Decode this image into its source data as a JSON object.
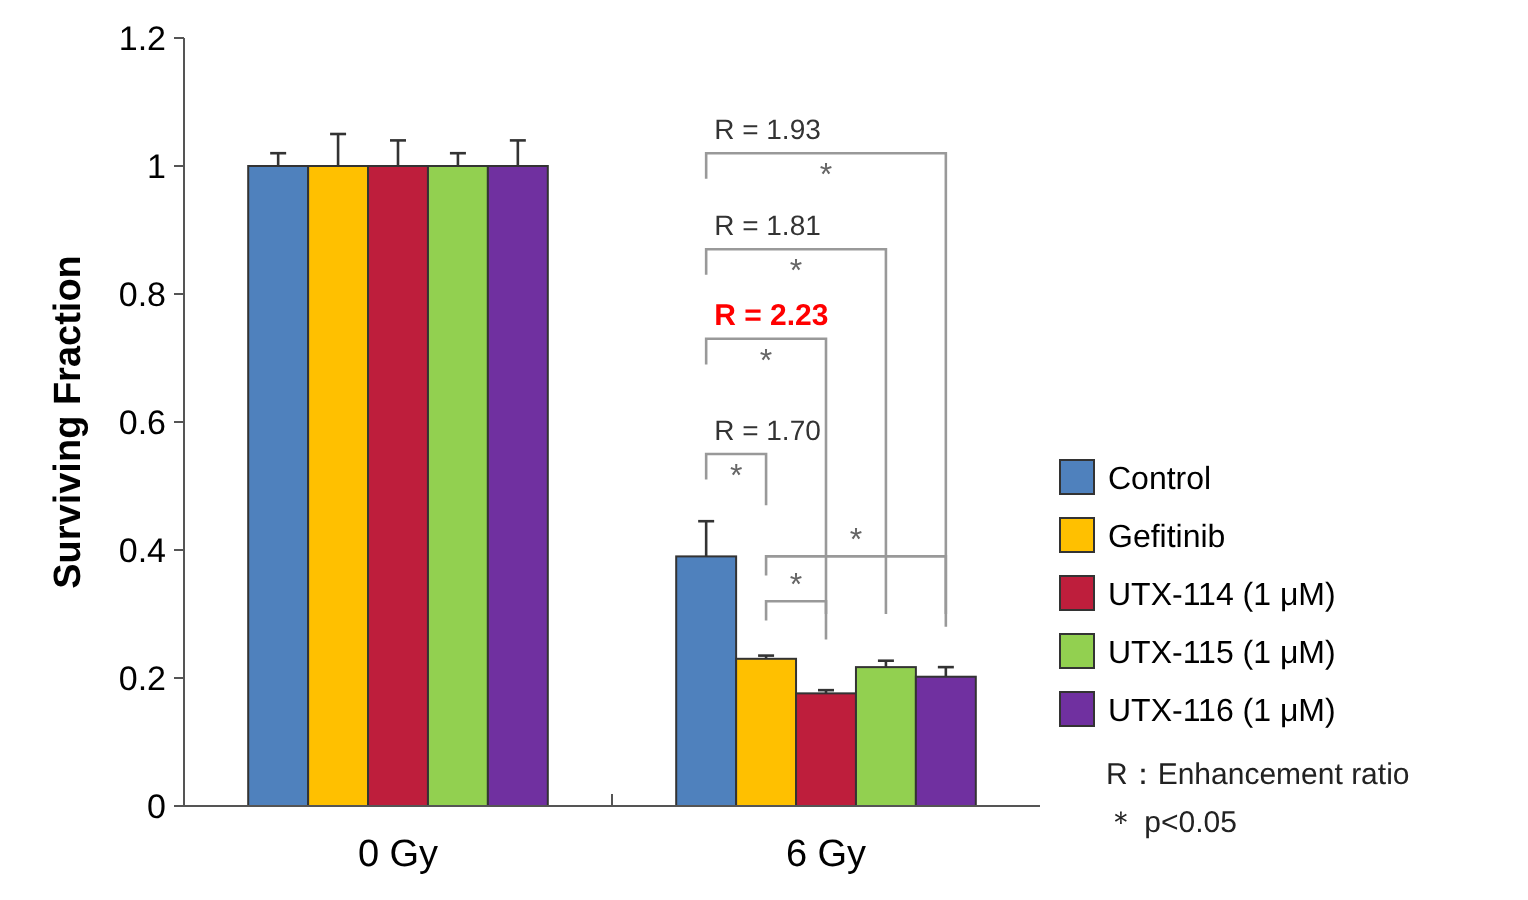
{
  "chart_data": {
    "type": "bar",
    "ylabel": "Surviving Fraction",
    "categories": [
      "0 Gy",
      "6 Gy"
    ],
    "series": [
      {
        "name": "Control",
        "color": "#4f81bd",
        "values": [
          1,
          0.39
        ],
        "errors": [
          0.02,
          0.055
        ]
      },
      {
        "name": "Gefitinib",
        "color": "#ffc000",
        "values": [
          1,
          0.23
        ],
        "errors": [
          0.05,
          0.005
        ]
      },
      {
        "name": "UTX-114 (1 μM)",
        "color": "#be1e3c",
        "values": [
          1,
          0.176
        ],
        "errors": [
          0.04,
          0.005
        ]
      },
      {
        "name": "UTX-115 (1 μM)",
        "color": "#92d050",
        "values": [
          1,
          0.217
        ],
        "errors": [
          0.02,
          0.01
        ]
      },
      {
        "name": "UTX-116 (1 μM)",
        "color": "#7030a0",
        "values": [
          1,
          0.202
        ],
        "errors": [
          0.04,
          0.015
        ]
      }
    ],
    "ylim": [
      0,
      1.2
    ],
    "yticks": [
      0,
      0.2,
      0.4,
      0.6,
      0.8,
      1,
      1.2
    ],
    "grid": false,
    "legend": "right",
    "annotations": [
      "R = 1.93",
      "*",
      "R = 1.81",
      "*",
      "R = 2.23",
      "*",
      "R = 1.70",
      "*",
      "*",
      "*",
      "R：Enhancement ratio",
      "＊ p<0.05"
    ]
  }
}
